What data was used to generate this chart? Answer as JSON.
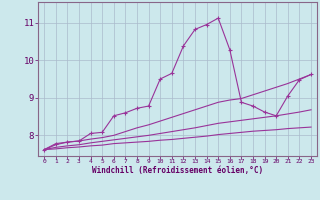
{
  "xlabel": "Windchill (Refroidissement éolien,°C)",
  "bg_color": "#cce8ec",
  "line_color": "#993399",
  "grid_color": "#aabbcc",
  "xlim": [
    -0.5,
    23.5
  ],
  "ylim": [
    7.45,
    11.55
  ],
  "yticks": [
    8,
    9,
    10,
    11
  ],
  "xticks": [
    0,
    1,
    2,
    3,
    4,
    5,
    6,
    7,
    8,
    9,
    10,
    11,
    12,
    13,
    14,
    15,
    16,
    17,
    18,
    19,
    20,
    21,
    22,
    23
  ],
  "s1_x": [
    0,
    1,
    2,
    3,
    4,
    5,
    6,
    7,
    8,
    9,
    10,
    11,
    12,
    13,
    14,
    15,
    16,
    17,
    18,
    19,
    20,
    21,
    22,
    23
  ],
  "s1_y": [
    7.62,
    7.78,
    7.82,
    7.85,
    8.05,
    8.08,
    8.52,
    8.6,
    8.72,
    8.78,
    9.5,
    9.65,
    10.38,
    10.82,
    10.95,
    11.12,
    10.28,
    8.88,
    8.78,
    8.62,
    8.52,
    9.05,
    9.48,
    9.62
  ],
  "s2_x": [
    0,
    1,
    2,
    3,
    4,
    5,
    6,
    7,
    8,
    9,
    10,
    11,
    12,
    13,
    14,
    15,
    16,
    17,
    18,
    19,
    20,
    21,
    22,
    23
  ],
  "s2_y": [
    7.62,
    7.75,
    7.82,
    7.85,
    7.9,
    7.94,
    8.0,
    8.1,
    8.2,
    8.28,
    8.38,
    8.48,
    8.58,
    8.68,
    8.78,
    8.88,
    8.94,
    8.98,
    9.08,
    9.18,
    9.28,
    9.38,
    9.5,
    9.62
  ],
  "s3_x": [
    0,
    1,
    2,
    3,
    4,
    5,
    6,
    7,
    8,
    9,
    10,
    11,
    12,
    13,
    14,
    15,
    16,
    17,
    18,
    19,
    20,
    21,
    22,
    23
  ],
  "s3_y": [
    7.62,
    7.68,
    7.72,
    7.75,
    7.8,
    7.84,
    7.88,
    7.92,
    7.96,
    8.0,
    8.05,
    8.1,
    8.15,
    8.2,
    8.26,
    8.32,
    8.36,
    8.4,
    8.44,
    8.48,
    8.52,
    8.57,
    8.62,
    8.68
  ],
  "s4_x": [
    0,
    1,
    2,
    3,
    4,
    5,
    6,
    7,
    8,
    9,
    10,
    11,
    12,
    13,
    14,
    15,
    16,
    17,
    18,
    19,
    20,
    21,
    22,
    23
  ],
  "s4_y": [
    7.62,
    7.64,
    7.67,
    7.69,
    7.72,
    7.74,
    7.78,
    7.8,
    7.82,
    7.84,
    7.87,
    7.89,
    7.92,
    7.95,
    7.98,
    8.02,
    8.05,
    8.08,
    8.11,
    8.13,
    8.15,
    8.18,
    8.2,
    8.22
  ]
}
